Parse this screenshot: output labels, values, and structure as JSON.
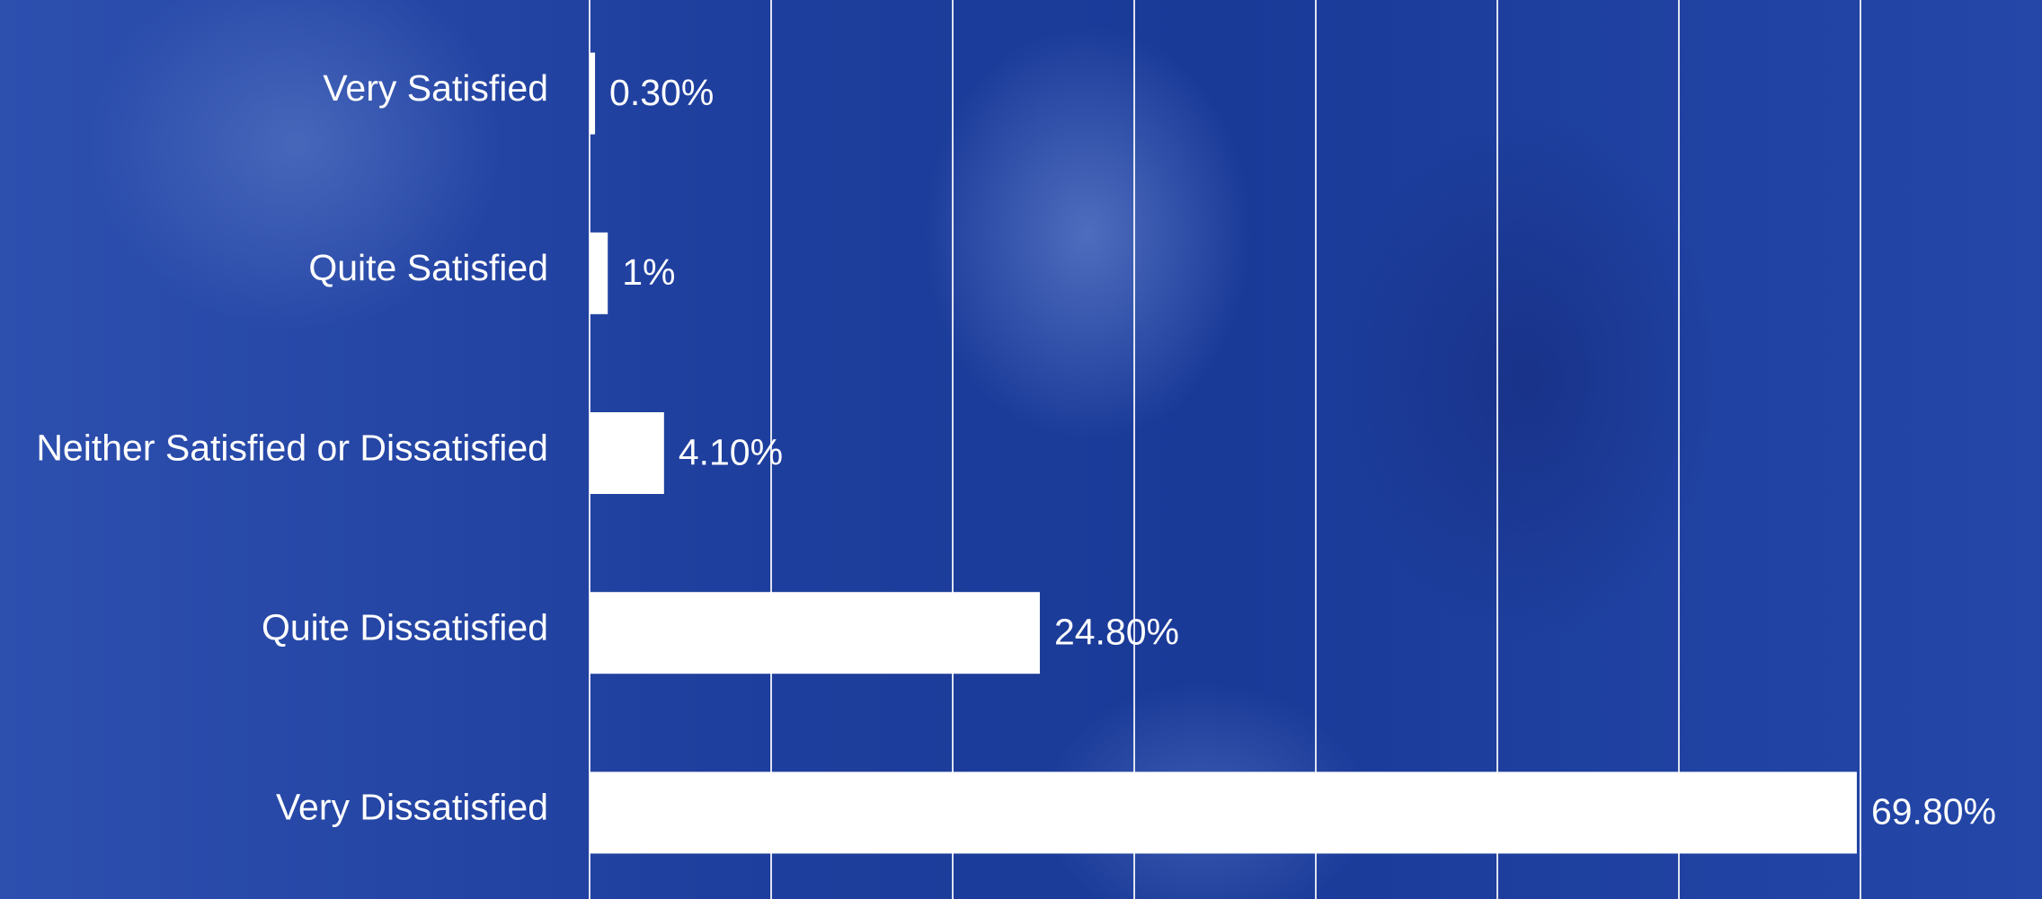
{
  "chart_data": {
    "type": "bar",
    "orientation": "horizontal",
    "categories": [
      "Very Satisfied",
      "Quite Satisfied",
      "Neither Satisfied or Dissatisfied",
      "Quite Dissatisfied",
      "Very Dissatisfied"
    ],
    "values": [
      0.3,
      1,
      4.1,
      24.8,
      69.8
    ],
    "value_labels": [
      "0.30%",
      "1%",
      "4.10%",
      "24.80%",
      "69.80%"
    ],
    "color": "#ffffff",
    "xlim": [
      0,
      80
    ],
    "xticks": [
      0,
      10,
      20,
      30,
      40,
      50,
      60,
      70
    ],
    "grid": true
  }
}
